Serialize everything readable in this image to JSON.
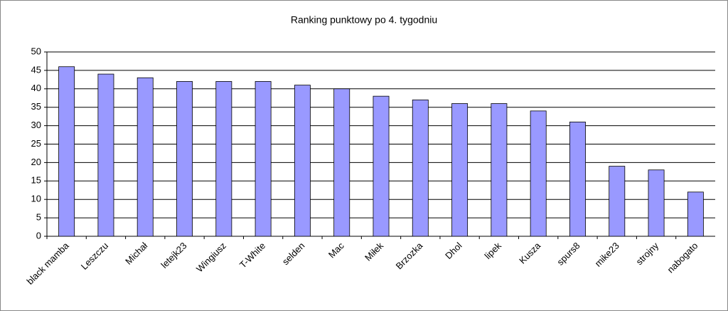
{
  "chart_data": {
    "type": "bar",
    "title": "Ranking punktowy po 4. tygodniu",
    "categories": [
      "black mamba",
      "Leszczu",
      "Michał",
      "letejk23",
      "Wingiusz",
      "T-White",
      "selden",
      "Mac",
      "Miłek",
      "Brzozka",
      "Dhol",
      "lipek",
      "Kusza",
      "spurs8",
      "mike23",
      "strojny",
      "nabogato"
    ],
    "values": [
      46,
      44,
      43,
      42,
      42,
      42,
      41,
      40,
      38,
      37,
      36,
      36,
      34,
      31,
      19,
      18,
      12
    ],
    "color": "#9999ff",
    "ylim": [
      0,
      50
    ],
    "yticks": [
      0,
      5,
      10,
      15,
      20,
      25,
      30,
      35,
      40,
      45,
      50
    ],
    "grid": true
  }
}
